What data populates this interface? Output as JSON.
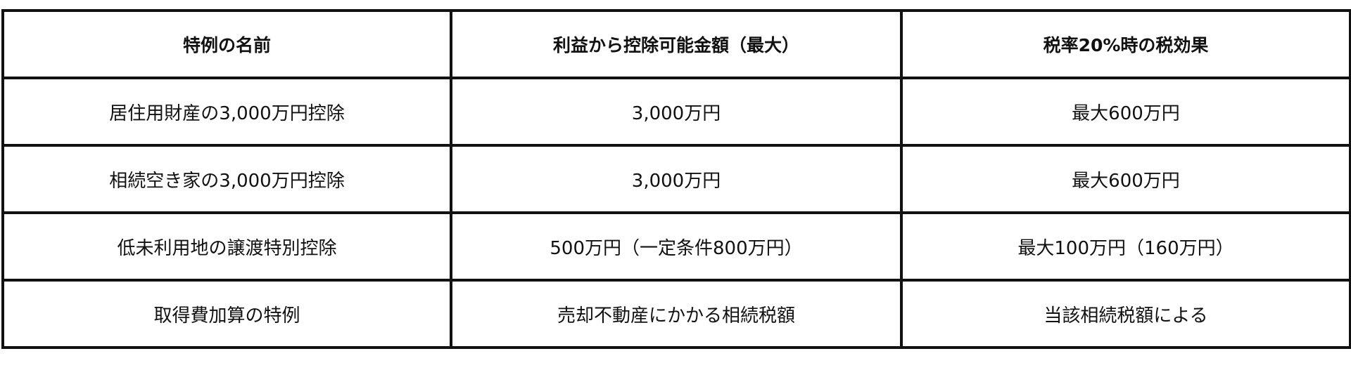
{
  "table": {
    "headers": [
      "特例の名前",
      "利益から控除可能金額（最大）",
      "税率20%時の税効果"
    ],
    "rows": [
      [
        "居住用財産の3,000万円控除",
        "3,000万円",
        "最大600万円"
      ],
      [
        "相続空き家の3,000万円控除",
        "3,000万円",
        "最大600万円"
      ],
      [
        "低未利用地の譲渡特別控除",
        "500万円（一定条件800万円）",
        "最大100万円（160万円）"
      ],
      [
        "取得費加算の特例",
        "売却不動産にかかる相続税額",
        "当該相続税額による"
      ]
    ]
  }
}
